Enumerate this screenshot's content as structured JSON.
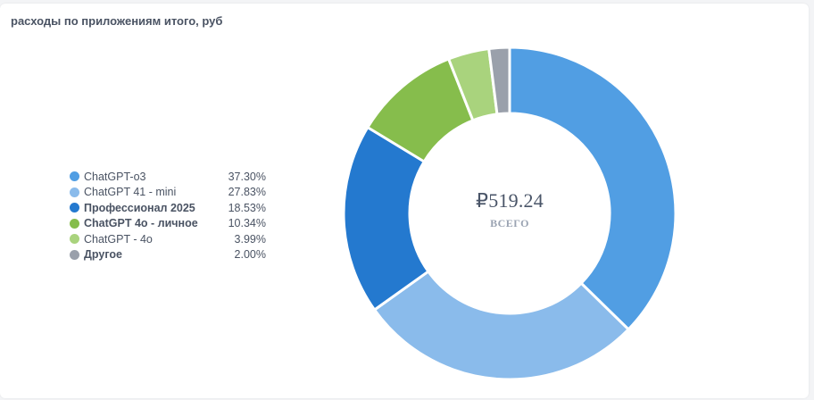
{
  "title": "расходы по приложениям итого, руб",
  "center": {
    "value": "₽519.24",
    "label": "ВСЕГО"
  },
  "legend": [
    {
      "label": "ChatGPT-o3",
      "value": "37.30%",
      "color": "#519ee3",
      "bold": false
    },
    {
      "label": "ChatGPT 41 - mini",
      "value": "27.83%",
      "color": "#8abbeb",
      "bold": false
    },
    {
      "label": "Профессионал 2025",
      "value": "18.53%",
      "color": "#2479cf",
      "bold": true
    },
    {
      "label": "ChatGPT 4o - личное",
      "value": "10.34%",
      "color": "#86bd4c",
      "bold": true
    },
    {
      "label": "ChatGPT - 4o",
      "value": "3.99%",
      "color": "#a9d37d",
      "bold": false
    },
    {
      "label": "Другое",
      "value": "2.00%",
      "color": "#9aa0ab",
      "bold": true
    }
  ],
  "chart_data": {
    "type": "pie",
    "title": "расходы по приложениям итого, руб",
    "total": "₽519.24",
    "total_label": "ВСЕГО",
    "categories": [
      "ChatGPT-o3",
      "ChatGPT 41 - mini",
      "Профессионал 2025",
      "ChatGPT 4o - личное",
      "ChatGPT - 4o",
      "Другое"
    ],
    "values": [
      37.3,
      27.83,
      18.53,
      10.34,
      3.99,
      2.0
    ],
    "colors": [
      "#519ee3",
      "#8abbeb",
      "#2479cf",
      "#86bd4c",
      "#a9d37d",
      "#9aa0ab"
    ],
    "legend_position": "left"
  }
}
